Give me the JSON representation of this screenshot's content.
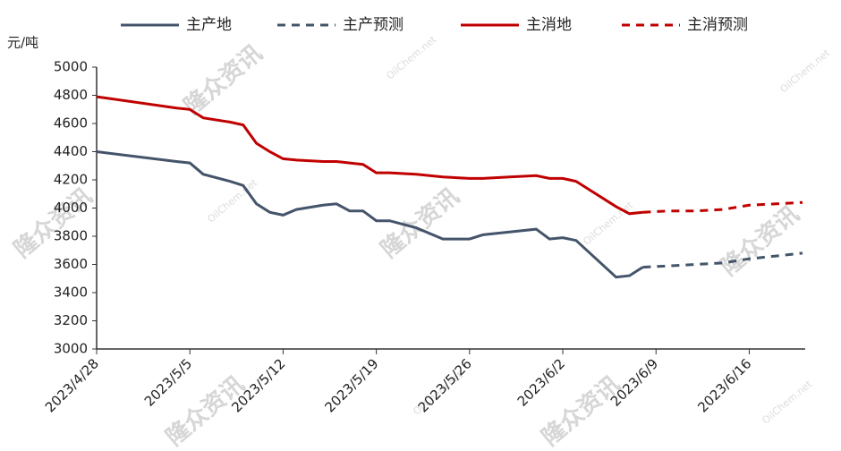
{
  "chart_data": {
    "type": "line",
    "ylabel": "元/吨",
    "watermark": "隆众资讯",
    "watermark_url": "OilChem.net",
    "x": [
      "2023/4/28",
      "2023/5/4",
      "2023/5/5",
      "2023/5/6",
      "2023/5/8",
      "2023/5/9",
      "2023/5/10",
      "2023/5/11",
      "2023/5/12",
      "2023/5/13",
      "2023/5/15",
      "2023/5/16",
      "2023/5/17",
      "2023/5/18",
      "2023/5/19",
      "2023/5/20",
      "2023/5/22",
      "2023/5/24",
      "2023/5/26",
      "2023/5/27",
      "2023/5/29",
      "2023/5/31",
      "2023/6/1",
      "2023/6/2",
      "2023/6/3",
      "2023/6/6",
      "2023/6/7",
      "2023/6/8",
      "2023/6/10",
      "2023/6/12",
      "2023/6/14",
      "2023/6/16",
      "2023/6/18",
      "2023/6/20"
    ],
    "xlim": [
      "2023/4/28",
      "2023/6/20"
    ],
    "xticks": [
      "2023/4/28",
      "2023/5/5",
      "2023/5/12",
      "2023/5/19",
      "2023/5/26",
      "2023/6/2",
      "2023/6/9",
      "2023/6/16"
    ],
    "ylim": [
      3000,
      5000
    ],
    "yticks": [
      3000,
      3200,
      3400,
      3600,
      3800,
      4000,
      4200,
      4400,
      4600,
      4800,
      5000
    ],
    "series": [
      {
        "name": "主产地",
        "color": "#44546a",
        "style": "solid",
        "values": [
          4400,
          4330,
          4320,
          4240,
          4190,
          4160,
          4030,
          3970,
          3950,
          3990,
          4020,
          4030,
          3980,
          3980,
          3910,
          3910,
          3860,
          3780,
          3780,
          3810,
          3830,
          3850,
          3780,
          3790,
          3770,
          3510,
          3520,
          3580,
          null,
          null,
          null,
          null,
          null,
          null
        ]
      },
      {
        "name": "主产预测",
        "color": "#44546a",
        "style": "dashed",
        "values": [
          null,
          null,
          null,
          null,
          null,
          null,
          null,
          null,
          null,
          null,
          null,
          null,
          null,
          null,
          null,
          null,
          null,
          null,
          null,
          null,
          null,
          null,
          null,
          null,
          null,
          null,
          null,
          3580,
          3590,
          3600,
          3610,
          3640,
          3660,
          3680
        ]
      },
      {
        "name": "主消地",
        "color": "#c00000",
        "style": "solid",
        "values": [
          4790,
          4710,
          4700,
          4640,
          4610,
          4590,
          4460,
          4400,
          4350,
          4340,
          4330,
          4330,
          4320,
          4310,
          4250,
          4250,
          4240,
          4220,
          4210,
          4210,
          4220,
          4230,
          4210,
          4210,
          4190,
          4010,
          3960,
          3970,
          null,
          null,
          null,
          null,
          null,
          null
        ]
      },
      {
        "name": "主消预测",
        "color": "#c00000",
        "style": "dashed",
        "values": [
          null,
          null,
          null,
          null,
          null,
          null,
          null,
          null,
          null,
          null,
          null,
          null,
          null,
          null,
          null,
          null,
          null,
          null,
          null,
          null,
          null,
          null,
          null,
          null,
          null,
          null,
          null,
          3970,
          3980,
          3980,
          3990,
          4020,
          4030,
          4040
        ]
      }
    ]
  }
}
